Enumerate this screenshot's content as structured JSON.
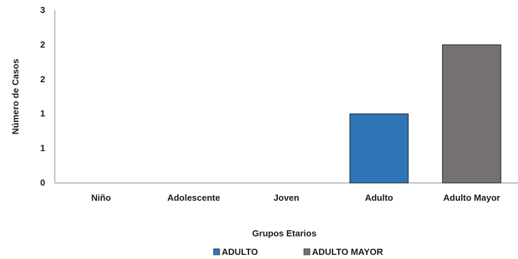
{
  "chart_data": {
    "type": "bar",
    "title": "",
    "xlabel": "Grupos Etarios",
    "ylabel": "Número de Casos",
    "categories": [
      "Niño",
      "Adolescente",
      "Joven",
      "Adulto",
      "Adulto Mayor"
    ],
    "y_tick_labels": [
      "0",
      "1",
      "1",
      "2",
      "2",
      "3"
    ],
    "ylim": [
      0,
      2.5
    ],
    "series": [
      {
        "name": "ADULTO",
        "color": "#2e75b6",
        "values": [
          0,
          0,
          0,
          1,
          0
        ]
      },
      {
        "name": "ADULTO MAYOR",
        "color": "#767171",
        "values": [
          0,
          0,
          0,
          0,
          2
        ]
      }
    ],
    "grid": false,
    "legend_position": "bottom"
  }
}
